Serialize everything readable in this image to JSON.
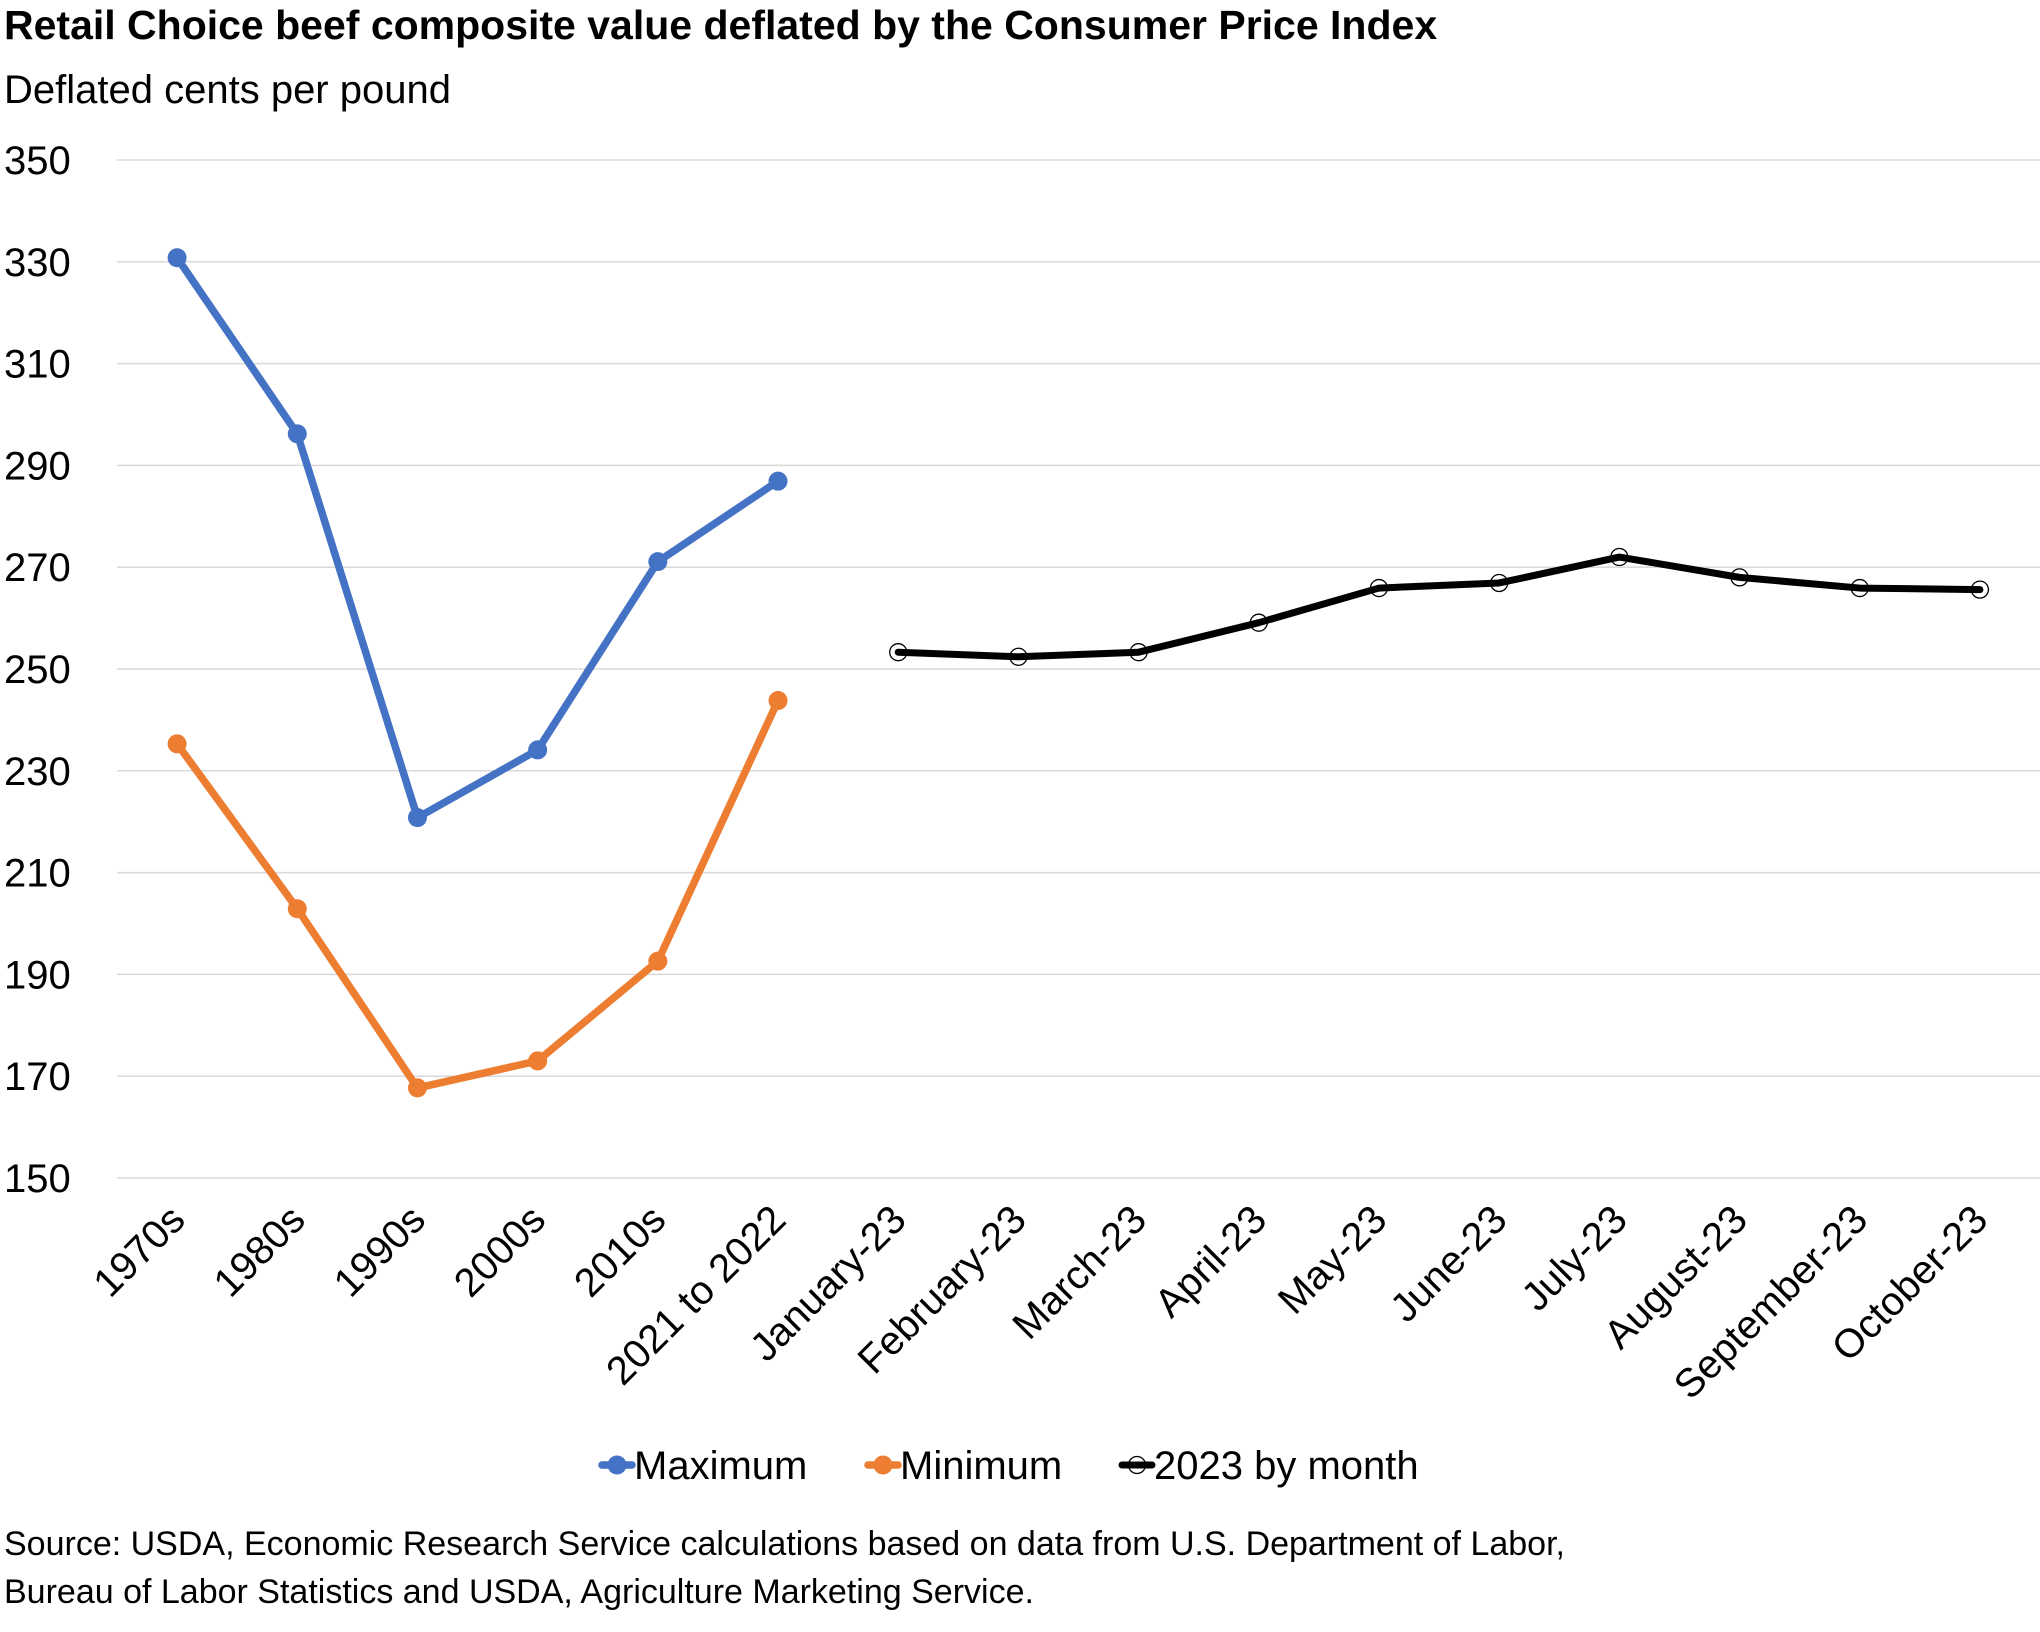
{
  "chart_data": {
    "type": "line",
    "title": "Retail Choice beef composite value deflated by the Consumer Price Index",
    "ylabel": "Deflated cents per pound",
    "xlabel": "",
    "ylim": [
      150,
      350
    ],
    "yticks": [
      350,
      330,
      310,
      290,
      270,
      250,
      230,
      210,
      190,
      170,
      150
    ],
    "grid": true,
    "legend_position": "bottom",
    "categories": [
      "1970s",
      "1980s",
      "1990s",
      "2000s",
      "2010s",
      "2021 to 2022",
      "January-23",
      "February-23",
      "March-23",
      "April-23",
      "May-23",
      "June-23",
      "July-23",
      "August-23",
      "September-23",
      "October-23"
    ],
    "series": [
      {
        "name": "Maximum",
        "color": "#4472C4",
        "marker": "filled-circle",
        "values": [
          330.8,
          296.2,
          220.8,
          234.1,
          271.1,
          286.9,
          null,
          null,
          null,
          null,
          null,
          null,
          null,
          null,
          null,
          null
        ]
      },
      {
        "name": "Minimum",
        "color": "#ED7D31",
        "marker": "filled-circle",
        "values": [
          235.3,
          202.9,
          167.7,
          173.0,
          192.6,
          243.8,
          null,
          null,
          null,
          null,
          null,
          null,
          null,
          null,
          null,
          null
        ]
      },
      {
        "name": "2023 by month",
        "color": "#000000",
        "marker": "open-circle",
        "values": [
          null,
          null,
          null,
          null,
          null,
          null,
          253.3,
          252.4,
          253.3,
          259.1,
          265.9,
          266.9,
          272.0,
          268.0,
          265.9,
          265.6
        ]
      }
    ]
  },
  "source": {
    "line1": "Source: USDA, Economic Research Service calculations based on data from U.S. Department of Labor,",
    "line2": "Bureau of Labor Statistics and USDA, Agriculture Marketing Service."
  }
}
